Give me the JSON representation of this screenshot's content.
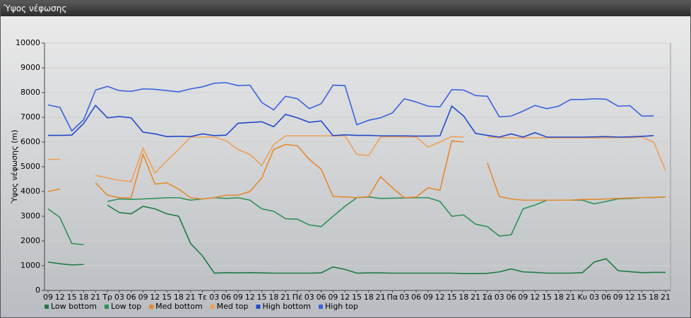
{
  "chart_data": {
    "type": "line",
    "title": "Ύψος νέφωσης",
    "y_label": "Ύψος νέφωσης (m)",
    "categories": [
      "09",
      "12",
      "15",
      "18",
      "21",
      "Τρ",
      "03",
      "06",
      "09",
      "12",
      "15",
      "18",
      "21",
      "Τε",
      "03",
      "06",
      "09",
      "12",
      "15",
      "18",
      "21",
      "Πέ",
      "03",
      "06",
      "09",
      "12",
      "15",
      "18",
      "21",
      "Πα",
      "03",
      "06",
      "09",
      "12",
      "15",
      "18",
      "21",
      "Σά",
      "03",
      "06",
      "09",
      "12",
      "15",
      "18",
      "21",
      "Κυ",
      "03",
      "06",
      "09",
      "12",
      "15",
      "18",
      "21"
    ],
    "ylim": [
      0,
      10000
    ],
    "yticks": [
      0,
      1000,
      2000,
      3000,
      4000,
      5000,
      6000,
      7000,
      8000,
      9000,
      10000
    ],
    "grid": true,
    "series": [
      {
        "name": "Low bottom",
        "color": "#1e7a45",
        "values": [
          1150,
          1080,
          1030,
          1050,
          null,
          3450,
          3150,
          3100,
          3400,
          3300,
          3100,
          3000,
          1900,
          1400,
          700,
          720,
          710,
          720,
          710,
          700,
          700,
          700,
          700,
          710,
          950,
          850,
          700,
          710,
          710,
          700,
          700,
          700,
          700,
          700,
          700,
          680,
          680,
          690,
          750,
          870,
          750,
          730,
          700,
          700,
          700,
          720,
          1150,
          1280,
          800,
          760,
          720,
          730,
          730
        ]
      },
      {
        "name": "Low top",
        "color": "#2f8f5a",
        "values": [
          3300,
          2950,
          1900,
          1850,
          null,
          3600,
          3700,
          3680,
          3700,
          3720,
          3750,
          3750,
          3650,
          3700,
          3750,
          3720,
          3750,
          3650,
          3300,
          3200,
          2900,
          2880,
          2650,
          2580,
          3000,
          3400,
          3750,
          3780,
          3720,
          3730,
          3740,
          3750,
          3750,
          3600,
          3000,
          3050,
          2680,
          2580,
          2200,
          2250,
          3300,
          3450,
          3650,
          3650,
          3650,
          3650,
          3500,
          3600,
          3700,
          3720,
          3750,
          3760,
          3780
        ]
      },
      {
        "name": "Med bottom",
        "color": "#e5892e",
        "values": [
          4000,
          4100,
          null,
          null,
          4350,
          3850,
          3750,
          3750,
          5500,
          4300,
          4350,
          4100,
          3750,
          3700,
          3750,
          3850,
          3850,
          4000,
          4550,
          5700,
          5900,
          5850,
          5300,
          4900,
          3800,
          3780,
          3750,
          3800,
          4600,
          4150,
          3750,
          3780,
          4150,
          4050,
          6050,
          6000,
          null,
          5150,
          3800,
          3700,
          3650,
          3650,
          3650,
          3650,
          3650,
          3680,
          3680,
          3700,
          3720,
          3740,
          3750,
          3760,
          3780
        ]
      },
      {
        "name": "Med top",
        "color": "#eda055",
        "values": [
          5300,
          5300,
          null,
          null,
          4650,
          4550,
          4450,
          4400,
          5750,
          4750,
          5250,
          5700,
          6200,
          6200,
          6200,
          6050,
          5700,
          5500,
          5050,
          5900,
          6250,
          6250,
          6250,
          6250,
          6250,
          6250,
          5500,
          5450,
          6200,
          6220,
          6200,
          6200,
          5800,
          6000,
          6220,
          6200,
          null,
          6200,
          6180,
          6170,
          6170,
          6170,
          6170,
          6170,
          6170,
          6170,
          6170,
          6170,
          6180,
          6180,
          6200,
          6000,
          4850
        ]
      },
      {
        "name": "High bottom",
        "color": "#2449c8",
        "values": [
          6270,
          6270,
          6280,
          6750,
          7480,
          6980,
          7030,
          6980,
          6400,
          6330,
          6220,
          6230,
          6220,
          6330,
          6260,
          6280,
          6760,
          6790,
          6820,
          6620,
          7120,
          6980,
          6800,
          6850,
          6260,
          6290,
          6270,
          6270,
          6250,
          6250,
          6250,
          6240,
          6240,
          6250,
          7450,
          7050,
          6350,
          6270,
          6200,
          6330,
          6200,
          6380,
          6200,
          6200,
          6200,
          6200,
          6210,
          6220,
          6200,
          6210,
          6230,
          6260,
          null
        ]
      },
      {
        "name": "High top",
        "color": "#3b62dc",
        "values": [
          7500,
          7400,
          6450,
          6900,
          8100,
          8250,
          8080,
          8050,
          8150,
          8130,
          8080,
          8030,
          8150,
          8230,
          8380,
          8400,
          8280,
          8300,
          7600,
          7300,
          7850,
          7750,
          7350,
          7550,
          8300,
          8280,
          6700,
          6880,
          6980,
          7180,
          7750,
          7620,
          7450,
          7420,
          8120,
          8100,
          7880,
          7850,
          7020,
          7050,
          7250,
          7480,
          7350,
          7450,
          7720,
          7720,
          7750,
          7730,
          7450,
          7470,
          7050,
          7060,
          null
        ]
      }
    ]
  }
}
